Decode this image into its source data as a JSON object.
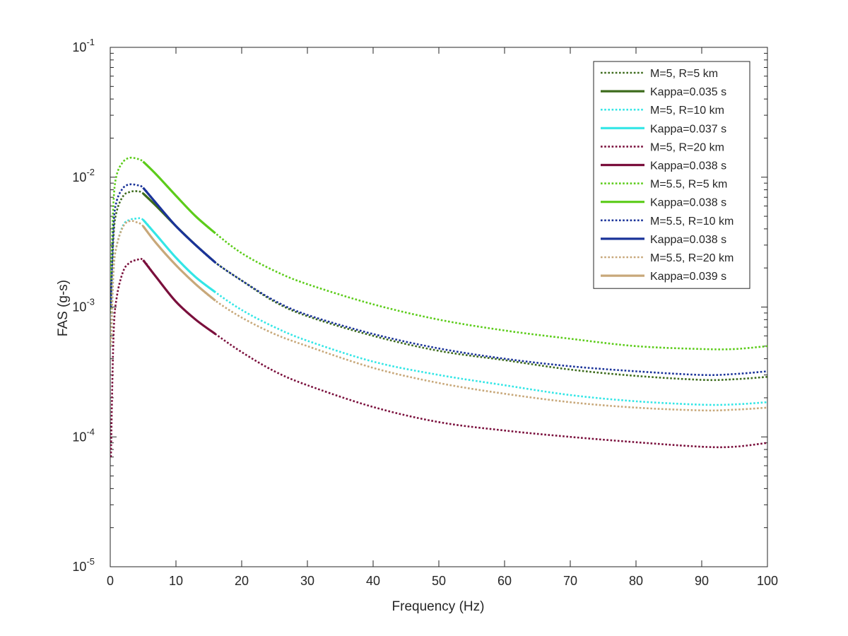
{
  "chart_data": {
    "type": "line",
    "xlabel": "Frequency (Hz)",
    "ylabel": "FAS (g-s)",
    "xlim": [
      0,
      100
    ],
    "ylim": [
      1e-05,
      0.1
    ],
    "yscale": "log",
    "xticks": [
      "0",
      "10",
      "20",
      "30",
      "40",
      "50",
      "60",
      "70",
      "80",
      "90",
      "100"
    ],
    "yticks": [
      {
        "base": "10",
        "exp": "-5",
        "value": 1e-05
      },
      {
        "base": "10",
        "exp": "-4",
        "value": 0.0001
      },
      {
        "base": "10",
        "exp": "-3",
        "value": 0.001
      },
      {
        "base": "10",
        "exp": "-2",
        "value": 0.01
      },
      {
        "base": "10",
        "exp": "-1",
        "value": 0.1
      }
    ],
    "grid": false,
    "legend_position": "top-right",
    "series": [
      {
        "name": "M=5, R=5 km",
        "color": "#3d6b1c",
        "style": "dotted",
        "x": [
          0.1,
          0.5,
          1,
          2,
          3,
          4,
          5,
          7,
          10,
          13,
          16,
          20,
          25,
          30,
          40,
          50,
          60,
          70,
          80,
          90,
          95,
          100
        ],
        "y": [
          0.0009,
          0.0035,
          0.0055,
          0.0072,
          0.0077,
          0.0078,
          0.0075,
          0.006,
          0.0042,
          0.003,
          0.0022,
          0.0016,
          0.0011,
          0.00085,
          0.0006,
          0.00046,
          0.00039,
          0.00033,
          0.000295,
          0.000275,
          0.000278,
          0.00029
        ]
      },
      {
        "name": "Kappa=0.035 s",
        "color": "#3d6b1c",
        "style": "solid",
        "x": [
          5,
          7,
          10,
          13,
          16
        ],
        "y": [
          0.0075,
          0.006,
          0.0042,
          0.003,
          0.0022
        ]
      },
      {
        "name": "M=5, R=10 km",
        "color": "#33e6e6",
        "style": "dotted",
        "x": [
          0.1,
          0.5,
          1,
          2,
          3,
          4,
          5,
          7,
          10,
          13,
          16,
          20,
          25,
          30,
          40,
          50,
          60,
          70,
          80,
          90,
          95,
          100
        ],
        "y": [
          0.0005,
          0.0019,
          0.003,
          0.0043,
          0.0047,
          0.0048,
          0.0047,
          0.0036,
          0.0024,
          0.0017,
          0.0013,
          0.00095,
          0.0007,
          0.00055,
          0.00038,
          0.0003,
          0.00025,
          0.00021,
          0.000188,
          0.000177,
          0.000178,
          0.000185
        ]
      },
      {
        "name": "Kappa=0.037 s",
        "color": "#33e6e6",
        "style": "solid",
        "x": [
          5,
          7,
          10,
          13,
          16
        ],
        "y": [
          0.0047,
          0.0036,
          0.0024,
          0.0017,
          0.0013
        ]
      },
      {
        "name": "M=5, R=20 km",
        "color": "#7a0f3c",
        "style": "dotted",
        "x": [
          0.1,
          0.5,
          1,
          2,
          3,
          4,
          5,
          7,
          10,
          13,
          16,
          20,
          25,
          30,
          40,
          50,
          60,
          70,
          80,
          90,
          95,
          100
        ],
        "y": [
          7e-05,
          0.0006,
          0.0012,
          0.0019,
          0.0022,
          0.0023,
          0.0023,
          0.0017,
          0.0011,
          0.0008,
          0.00062,
          0.00045,
          0.00032,
          0.00025,
          0.00017,
          0.00013,
          0.000112,
          0.0001,
          9.1e-05,
          8.4e-05,
          8.4e-05,
          9e-05
        ]
      },
      {
        "name": "Kappa=0.038 s",
        "color": "#7a0f3c",
        "style": "solid",
        "x": [
          5,
          7,
          10,
          13,
          16
        ],
        "y": [
          0.0023,
          0.0017,
          0.0011,
          0.0008,
          0.00062
        ]
      },
      {
        "name": "M=5.5, R=5 km",
        "color": "#5ccc1a",
        "style": "dotted",
        "x": [
          0.1,
          0.5,
          1,
          2,
          3,
          4,
          5,
          7,
          10,
          13,
          16,
          20,
          25,
          30,
          40,
          50,
          60,
          70,
          80,
          90,
          95,
          100
        ],
        "y": [
          0.0016,
          0.0065,
          0.0105,
          0.0132,
          0.0141,
          0.0139,
          0.0132,
          0.0105,
          0.0072,
          0.005,
          0.0037,
          0.0026,
          0.0019,
          0.0015,
          0.00105,
          0.0008,
          0.00066,
          0.00057,
          0.0005,
          0.000475,
          0.000475,
          0.0005
        ]
      },
      {
        "name": "Kappa=0.038 s",
        "color": "#5ccc1a",
        "style": "solid",
        "x": [
          5,
          7,
          10,
          13,
          16
        ],
        "y": [
          0.0132,
          0.0105,
          0.0072,
          0.005,
          0.0037
        ]
      },
      {
        "name": "M=5.5, R=10 km",
        "color": "#1a3399",
        "style": "dotted",
        "x": [
          0.1,
          0.5,
          1,
          2,
          3,
          4,
          5,
          7,
          10,
          13,
          16,
          20,
          25,
          30,
          40,
          50,
          60,
          70,
          80,
          90,
          95,
          100
        ],
        "y": [
          0.001,
          0.0042,
          0.0066,
          0.0083,
          0.0088,
          0.0087,
          0.0083,
          0.0063,
          0.0042,
          0.003,
          0.0022,
          0.0016,
          0.00112,
          0.00087,
          0.00062,
          0.00048,
          0.0004,
          0.00035,
          0.00032,
          0.0003,
          0.000305,
          0.00032
        ]
      },
      {
        "name": "Kappa=0.038 s",
        "color": "#1a3399",
        "style": "solid",
        "x": [
          5,
          7,
          10,
          13,
          16
        ],
        "y": [
          0.0083,
          0.0063,
          0.0042,
          0.003,
          0.0022
        ]
      },
      {
        "name": "M=5.5, R=20 km",
        "color": "#c8a87a",
        "style": "dotted",
        "x": [
          0.1,
          0.5,
          1,
          2,
          3,
          4,
          5,
          7,
          10,
          13,
          16,
          20,
          25,
          30,
          40,
          50,
          60,
          70,
          80,
          90,
          95,
          100
        ],
        "y": [
          0.0005,
          0.0019,
          0.003,
          0.0042,
          0.0046,
          0.0045,
          0.0042,
          0.0031,
          0.0021,
          0.0015,
          0.00112,
          0.00083,
          0.00062,
          0.0005,
          0.00034,
          0.00026,
          0.000215,
          0.000185,
          0.000168,
          0.00016,
          0.000162,
          0.000168
        ]
      },
      {
        "name": "Kappa=0.039 s",
        "color": "#c8a87a",
        "style": "solid",
        "x": [
          5,
          7,
          10,
          13,
          16
        ],
        "y": [
          0.0042,
          0.0031,
          0.0021,
          0.0015,
          0.00112
        ]
      }
    ]
  }
}
